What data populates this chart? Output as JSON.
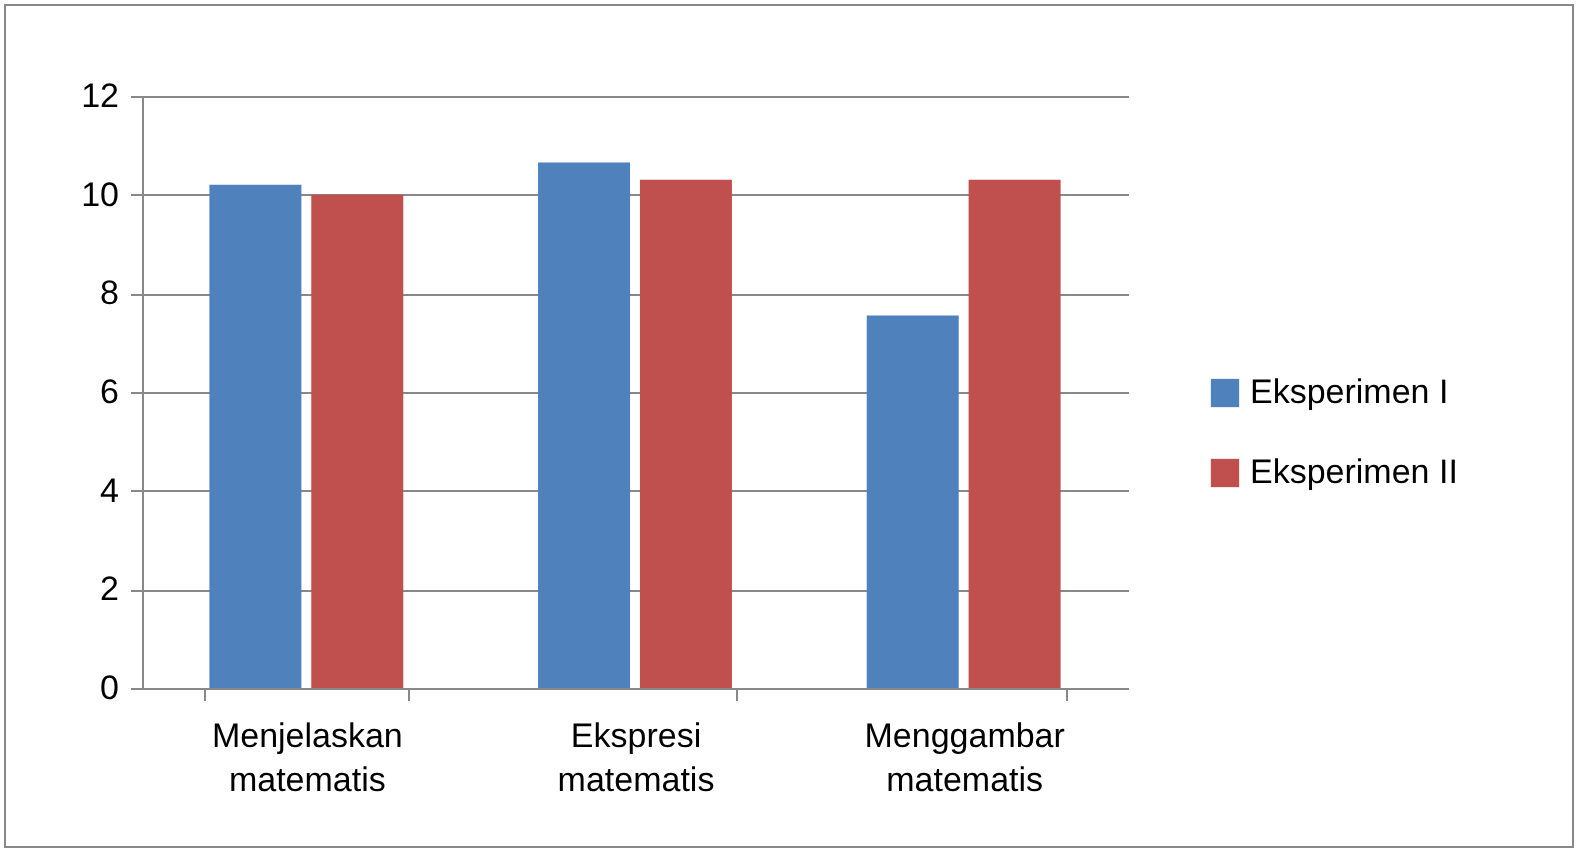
{
  "chart_data": {
    "type": "bar",
    "categories": [
      "Menjelaskan matematis",
      "Ekspresi matematis",
      "Menggambar matematis"
    ],
    "series": [
      {
        "name": "Eksperimen I",
        "color": "#4f81bd",
        "values": [
          10.2,
          10.65,
          7.55
        ]
      },
      {
        "name": "Eksperimen II",
        "color": "#c0504d",
        "values": [
          10.0,
          10.3,
          10.3
        ]
      }
    ],
    "ylim": [
      0,
      12
    ],
    "yticks": [
      0,
      2,
      4,
      6,
      8,
      10,
      12
    ],
    "grid": "y",
    "legend": "right"
  }
}
